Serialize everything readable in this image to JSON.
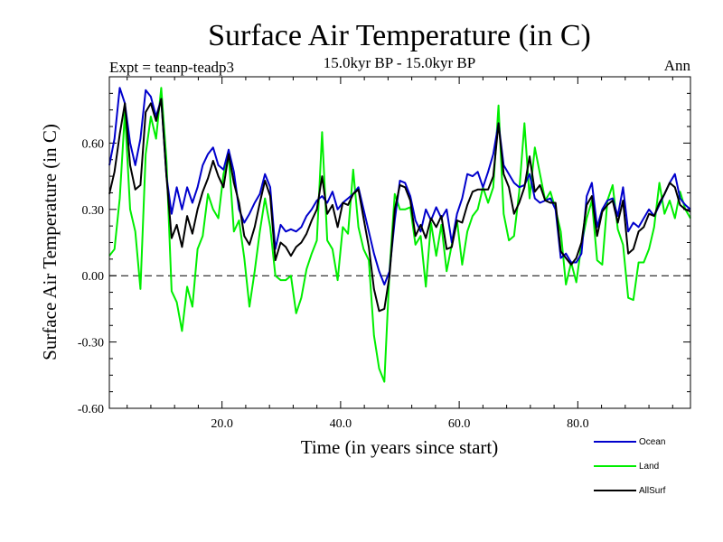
{
  "chart_data": {
    "type": "line",
    "title": "Surface Air Temperature (in C)",
    "subtitle": "15.0kyr BP - 15.0kyr BP",
    "left_label": "Expt = teanp-teadp3",
    "right_label": "Ann",
    "xlabel": "Time (in years since start)",
    "ylabel": "Surface Air Temperature (in C)",
    "xlim": [
      1,
      99
    ],
    "ylim": [
      -0.6,
      0.9
    ],
    "xticks": [
      20,
      40,
      60,
      80
    ],
    "xtick_labels": [
      "20.0",
      "40.0",
      "60.0",
      "80.0"
    ],
    "yticks": [
      -0.6,
      -0.3,
      0.0,
      0.3,
      0.6
    ],
    "ytick_labels": [
      "-0.60",
      "-0.30",
      "0.00",
      "0.30",
      "0.60"
    ],
    "zero_line": true,
    "legend_position": "bottom-right",
    "series": [
      {
        "name": "Ocean",
        "color": "#0000cc",
        "values": [
          0.5,
          0.62,
          0.85,
          0.78,
          0.6,
          0.5,
          0.62,
          0.84,
          0.81,
          0.72,
          0.8,
          0.45,
          0.28,
          0.4,
          0.3,
          0.4,
          0.33,
          0.4,
          0.5,
          0.55,
          0.58,
          0.5,
          0.48,
          0.57,
          0.47,
          0.3,
          0.24,
          0.28,
          0.33,
          0.37,
          0.46,
          0.4,
          0.12,
          0.23,
          0.2,
          0.21,
          0.2,
          0.22,
          0.27,
          0.3,
          0.34,
          0.36,
          0.33,
          0.38,
          0.3,
          0.33,
          0.35,
          0.37,
          0.4,
          0.3,
          0.2,
          0.1,
          0.02,
          -0.04,
          0.02,
          0.25,
          0.43,
          0.42,
          0.36,
          0.25,
          0.2,
          0.3,
          0.25,
          0.31,
          0.26,
          0.3,
          0.15,
          0.28,
          0.35,
          0.46,
          0.45,
          0.47,
          0.4,
          0.47,
          0.55,
          0.69,
          0.5,
          0.46,
          0.42,
          0.4,
          0.41,
          0.46,
          0.35,
          0.33,
          0.34,
          0.35,
          0.3,
          0.08,
          0.1,
          0.06,
          0.06,
          0.1,
          0.36,
          0.42,
          0.22,
          0.3,
          0.34,
          0.35,
          0.27,
          0.4,
          0.2,
          0.24,
          0.22,
          0.26,
          0.3,
          0.27,
          0.32,
          0.37,
          0.42,
          0.46,
          0.35,
          0.32,
          0.3
        ]
      },
      {
        "name": "Land",
        "color": "#00ee00",
        "values": [
          0.09,
          0.12,
          0.35,
          0.74,
          0.3,
          0.2,
          -0.06,
          0.55,
          0.72,
          0.62,
          0.85,
          0.52,
          -0.07,
          -0.12,
          -0.25,
          -0.05,
          -0.14,
          0.12,
          0.18,
          0.37,
          0.3,
          0.26,
          0.46,
          0.55,
          0.2,
          0.25,
          0.08,
          -0.14,
          0.02,
          0.2,
          0.35,
          0.22,
          0.0,
          -0.02,
          -0.02,
          0.0,
          -0.17,
          -0.1,
          0.03,
          0.1,
          0.16,
          0.65,
          0.16,
          0.12,
          -0.02,
          0.22,
          0.19,
          0.48,
          0.22,
          0.12,
          0.07,
          -0.27,
          -0.42,
          -0.48,
          0.02,
          0.37,
          0.3,
          0.3,
          0.31,
          0.14,
          0.18,
          -0.05,
          0.24,
          0.09,
          0.23,
          0.02,
          0.14,
          0.25,
          0.05,
          0.2,
          0.27,
          0.3,
          0.4,
          0.33,
          0.4,
          0.77,
          0.28,
          0.16,
          0.18,
          0.38,
          0.69,
          0.35,
          0.58,
          0.46,
          0.34,
          0.38,
          0.3,
          0.2,
          -0.04,
          0.06,
          -0.03,
          0.14,
          0.26,
          0.34,
          0.07,
          0.05,
          0.34,
          0.41,
          0.21,
          0.14,
          -0.1,
          -0.11,
          0.06,
          0.06,
          0.12,
          0.22,
          0.42,
          0.28,
          0.34,
          0.26,
          0.38,
          0.3,
          0.26
        ]
      },
      {
        "name": "AllSurf",
        "color": "#000000",
        "values": [
          0.37,
          0.47,
          0.64,
          0.78,
          0.5,
          0.39,
          0.41,
          0.74,
          0.78,
          0.7,
          0.8,
          0.45,
          0.17,
          0.23,
          0.13,
          0.27,
          0.19,
          0.3,
          0.38,
          0.44,
          0.52,
          0.45,
          0.4,
          0.55,
          0.42,
          0.33,
          0.18,
          0.14,
          0.22,
          0.33,
          0.43,
          0.36,
          0.07,
          0.15,
          0.13,
          0.09,
          0.13,
          0.15,
          0.19,
          0.25,
          0.3,
          0.45,
          0.28,
          0.32,
          0.22,
          0.33,
          0.32,
          0.37,
          0.39,
          0.26,
          0.13,
          -0.06,
          -0.16,
          -0.15,
          0.0,
          0.3,
          0.41,
          0.4,
          0.34,
          0.18,
          0.23,
          0.17,
          0.26,
          0.22,
          0.27,
          0.12,
          0.13,
          0.25,
          0.24,
          0.32,
          0.38,
          0.39,
          0.39,
          0.39,
          0.45,
          0.69,
          0.46,
          0.4,
          0.28,
          0.33,
          0.4,
          0.54,
          0.38,
          0.41,
          0.34,
          0.33,
          0.33,
          0.11,
          0.08,
          0.05,
          0.08,
          0.15,
          0.32,
          0.36,
          0.18,
          0.29,
          0.32,
          0.34,
          0.24,
          0.34,
          0.1,
          0.12,
          0.2,
          0.22,
          0.28,
          0.27,
          0.33,
          0.37,
          0.42,
          0.4,
          0.32,
          0.3,
          0.29
        ]
      }
    ]
  }
}
